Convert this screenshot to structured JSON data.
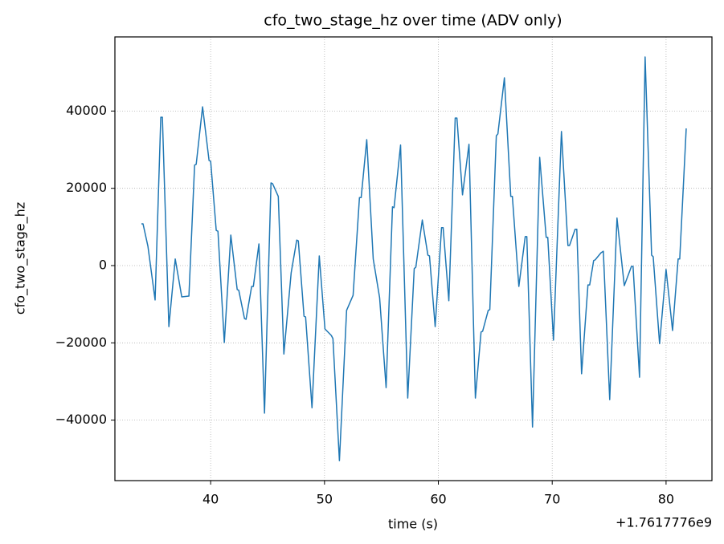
{
  "chart_data": {
    "type": "line",
    "title": "cfo_two_stage_hz over time (ADV only)",
    "x_label": "time (s)",
    "y_label": "cfo_two_stage_hz",
    "x_offset_label": "+1.7617776e9",
    "color": "#1f77b4",
    "grid": true,
    "xlim": [
      31.59,
      84.03
    ],
    "ylim": [
      -55660,
      59190
    ],
    "xticks": [
      40,
      50,
      60,
      70,
      80
    ],
    "yticks": [
      {
        "value": -40000,
        "label": "−40000"
      },
      {
        "value": -20000,
        "label": "−20000"
      },
      0,
      20000,
      40000
    ],
    "x": [
      33.92,
      34.06,
      34.49,
      35.12,
      35.62,
      35.76,
      36.33,
      36.89,
      37.46,
      38.09,
      38.59,
      38.73,
      39.29,
      39.86,
      40.0,
      40.49,
      40.64,
      41.2,
      41.77,
      42.33,
      42.47,
      42.97,
      43.11,
      43.6,
      43.75,
      44.24,
      44.73,
      45.3,
      45.44,
      45.94,
      46.43,
      47.07,
      47.56,
      47.7,
      48.2,
      48.34,
      48.9,
      49.54,
      50.04,
      50.6,
      50.74,
      51.31,
      51.94,
      52.51,
      53.07,
      53.22,
      53.71,
      54.28,
      54.84,
      55.41,
      55.97,
      56.11,
      56.68,
      57.31,
      57.88,
      58.02,
      58.59,
      59.08,
      59.22,
      59.72,
      60.28,
      60.42,
      60.92,
      61.48,
      61.63,
      62.12,
      62.69,
      63.25,
      63.75,
      63.89,
      64.38,
      64.52,
      65.09,
      65.23,
      65.8,
      66.36,
      66.5,
      67.07,
      67.63,
      67.77,
      68.27,
      68.9,
      69.47,
      69.61,
      70.11,
      70.81,
      71.38,
      71.52,
      72.01,
      72.16,
      72.58,
      73.14,
      73.29,
      73.64,
      73.78,
      74.28,
      74.49,
      75.05,
      75.69,
      76.33,
      76.96,
      77.1,
      77.67,
      78.16,
      78.73,
      78.87,
      79.43,
      80.0,
      80.57,
      81.06,
      81.2,
      81.77
    ],
    "values": [
      10800,
      10800,
      5000,
      -8900,
      38400,
      38400,
      -15800,
      1700,
      -8100,
      -7900,
      26000,
      26200,
      41100,
      27200,
      27000,
      9100,
      8900,
      -19900,
      7900,
      -6200,
      -6400,
      -13700,
      -13900,
      -5400,
      -5400,
      5600,
      -38200,
      21400,
      21200,
      17900,
      -22900,
      -1900,
      6600,
      6400,
      -13100,
      -13300,
      -36800,
      2500,
      -16400,
      -18100,
      -18900,
      -50500,
      -11600,
      -7700,
      17600,
      17600,
      32600,
      1700,
      -8300,
      -31600,
      15200,
      15000,
      31200,
      -34300,
      -800,
      -400,
      11800,
      2700,
      2500,
      -15800,
      9800,
      9800,
      -9100,
      38200,
      38200,
      18300,
      31400,
      -34300,
      -17200,
      -17000,
      -11600,
      -11400,
      33600,
      34100,
      48600,
      17900,
      17900,
      -5400,
      7500,
      7500,
      -41800,
      28000,
      7300,
      7300,
      -19300,
      34700,
      5200,
      5200,
      9400,
      9400,
      -28000,
      -5000,
      -5000,
      1300,
      1500,
      3300,
      3700,
      -34700,
      12300,
      -5200,
      -200,
      -200,
      -28900,
      54000,
      2700,
      2300,
      -20200,
      -1000,
      -16800,
      1700,
      1700,
      35500
    ]
  }
}
